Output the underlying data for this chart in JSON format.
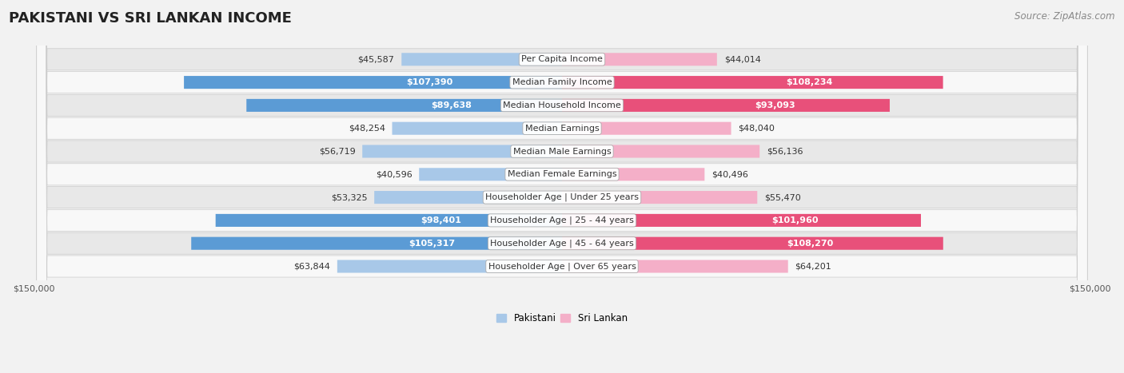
{
  "title": "PAKISTANI VS SRI LANKAN INCOME",
  "source": "Source: ZipAtlas.com",
  "categories": [
    "Per Capita Income",
    "Median Family Income",
    "Median Household Income",
    "Median Earnings",
    "Median Male Earnings",
    "Median Female Earnings",
    "Householder Age | Under 25 years",
    "Householder Age | 25 - 44 years",
    "Householder Age | 45 - 64 years",
    "Householder Age | Over 65 years"
  ],
  "pakistani_values": [
    45587,
    107390,
    89638,
    48254,
    56719,
    40596,
    53325,
    98401,
    105317,
    63844
  ],
  "srilanka_values": [
    44014,
    108234,
    93093,
    48040,
    56136,
    40496,
    55470,
    101960,
    108270,
    64201
  ],
  "pakistani_labels": [
    "$45,587",
    "$107,390",
    "$89,638",
    "$48,254",
    "$56,719",
    "$40,596",
    "$53,325",
    "$98,401",
    "$105,317",
    "$63,844"
  ],
  "srilanka_labels": [
    "$44,014",
    "$108,234",
    "$93,093",
    "$48,040",
    "$56,136",
    "$40,496",
    "$55,470",
    "$101,960",
    "$108,270",
    "$64,201"
  ],
  "pakistani_color_light": "#a8c8e8",
  "pakistani_color_dark": "#5b9bd5",
  "srilanka_color_light": "#f4afc8",
  "srilanka_color_dark": "#e8507a",
  "threshold": 75000,
  "max_value": 150000,
  "fig_bg": "#f2f2f2",
  "row_color_even": "#e8e8e8",
  "row_color_odd": "#f8f8f8",
  "title_fontsize": 13,
  "source_fontsize": 8.5,
  "label_fontsize": 8,
  "category_fontsize": 8,
  "tick_fontsize": 8
}
